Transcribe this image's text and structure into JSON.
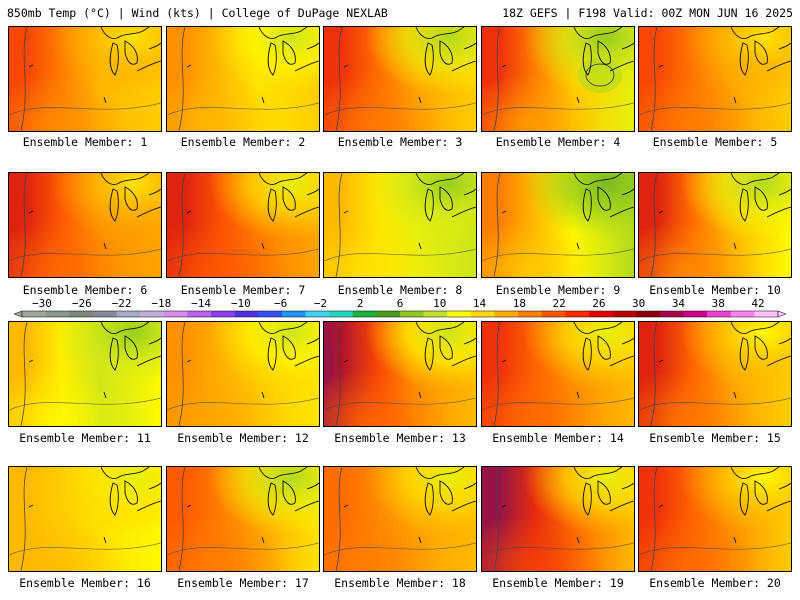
{
  "header": {
    "left": "850mb Temp (°C) | Wind (kts) | College of DuPage NEXLAB",
    "right": "18Z GEFS | F198 Valid: 00Z MON JUN 16 2025"
  },
  "member_label_prefix": "Ensemble Member: ",
  "members": [
    {
      "id": "1",
      "west": 24,
      "center": 18,
      "east": 17,
      "ne": 16,
      "hot": false,
      "cool_blob": false
    },
    {
      "id": "2",
      "west": 20,
      "center": 16,
      "east": 17,
      "ne": 13,
      "hot": false,
      "cool_blob": false
    },
    {
      "id": "3",
      "west": 25,
      "center": 19,
      "east": 17,
      "ne": 12,
      "hot": false,
      "cool_blob": false
    },
    {
      "id": "4",
      "west": 25,
      "center": 17,
      "east": 14,
      "ne": 11,
      "hot": false,
      "cool_blob": true
    },
    {
      "id": "5",
      "west": 24,
      "center": 19,
      "east": 17,
      "ne": 16,
      "hot": false,
      "cool_blob": false
    },
    {
      "id": "6",
      "west": 26,
      "center": 20,
      "east": 19,
      "ne": 16,
      "hot": false,
      "cool_blob": false
    },
    {
      "id": "7",
      "west": 26,
      "center": 21,
      "east": 19,
      "ne": 14,
      "hot": false,
      "cool_blob": false
    },
    {
      "id": "8",
      "west": 18,
      "center": 14,
      "east": 13,
      "ne": 11,
      "hot": false,
      "cool_blob": false
    },
    {
      "id": "9",
      "west": 21,
      "center": 15,
      "east": 12,
      "ne": 9,
      "hot": false,
      "cool_blob": false
    },
    {
      "id": "10",
      "west": 26,
      "center": 18,
      "east": 15,
      "ne": 12,
      "hot": false,
      "cool_blob": false
    },
    {
      "id": "11",
      "west": 18,
      "center": 13,
      "east": 15,
      "ne": 11,
      "hot": false,
      "cool_blob": false
    },
    {
      "id": "12",
      "west": 20,
      "center": 17,
      "east": 16,
      "ne": 13,
      "hot": false,
      "cool_blob": false
    },
    {
      "id": "13",
      "west": 28,
      "center": 20,
      "east": 18,
      "ne": 13,
      "hot": true,
      "cool_blob": false
    },
    {
      "id": "14",
      "west": 25,
      "center": 20,
      "east": 18,
      "ne": 14,
      "hot": false,
      "cool_blob": false
    },
    {
      "id": "15",
      "west": 26,
      "center": 19,
      "east": 17,
      "ne": 15,
      "hot": false,
      "cool_blob": false
    },
    {
      "id": "16",
      "west": 18,
      "center": 16,
      "east": 15,
      "ne": 14,
      "hot": false,
      "cool_blob": false
    },
    {
      "id": "17",
      "west": 23,
      "center": 19,
      "east": 16,
      "ne": 12,
      "hot": false,
      "cool_blob": false
    },
    {
      "id": "18",
      "west": 22,
      "center": 19,
      "east": 18,
      "ne": 14,
      "hot": false,
      "cool_blob": false
    },
    {
      "id": "19",
      "west": 29,
      "center": 22,
      "east": 18,
      "ne": 14,
      "hot": true,
      "cool_blob": false
    },
    {
      "id": "20",
      "west": 25,
      "center": 20,
      "east": 17,
      "ne": 15,
      "hot": false,
      "cool_blob": false
    }
  ],
  "colorbar": {
    "tick_labels": [
      "−30",
      "−26",
      "−22",
      "−18",
      "−14",
      "−10",
      "−6",
      "−2",
      "2",
      "6",
      "10",
      "14",
      "18",
      "22",
      "26",
      "30",
      "34",
      "38",
      "42"
    ],
    "colors": [
      "#9aa99a",
      "#8a9a8a",
      "#7b8a7b",
      "#888a99",
      "#a5acc4",
      "#c3aee0",
      "#d98cf0",
      "#c060ee",
      "#8a3ff0",
      "#5030e0",
      "#3050f0",
      "#2095f5",
      "#40d0f0",
      "#20d8c0",
      "#20b040",
      "#4a9c1a",
      "#8fc81e",
      "#c0e030",
      "#ffff00",
      "#ffd700",
      "#ffaa00",
      "#ff7f00",
      "#ff5500",
      "#ff2a00",
      "#e80000",
      "#bb0000",
      "#8b0000",
      "#aa0050",
      "#d0008c",
      "#f040d0",
      "#ff80f0",
      "#ffc0ff"
    ]
  }
}
